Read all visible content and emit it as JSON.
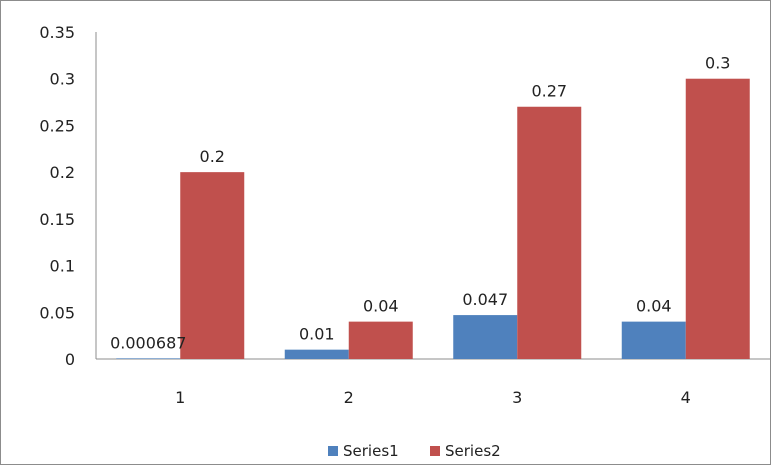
{
  "chart_data": {
    "type": "bar",
    "categories": [
      "1",
      "2",
      "3",
      "4"
    ],
    "series": [
      {
        "name": "Series1",
        "values": [
          0.000687,
          0.01,
          0.047,
          0.04
        ],
        "labels": [
          "0.000687",
          "0.01",
          "0.047",
          "0.04"
        ],
        "color": "#4f81bd"
      },
      {
        "name": "Series2",
        "values": [
          0.2,
          0.04,
          0.27,
          0.3
        ],
        "labels": [
          "0.2",
          "0.04",
          "0.27",
          "0.3"
        ],
        "color": "#c0504d"
      }
    ],
    "ylim": [
      0,
      0.35
    ],
    "y_ticks": [
      "0",
      "0.05",
      "0.1",
      "0.15",
      "0.2",
      "0.25",
      "0.3",
      "0.35"
    ],
    "grid": false,
    "legend_position": "bottom",
    "title": "",
    "xlabel": "",
    "ylabel": ""
  }
}
